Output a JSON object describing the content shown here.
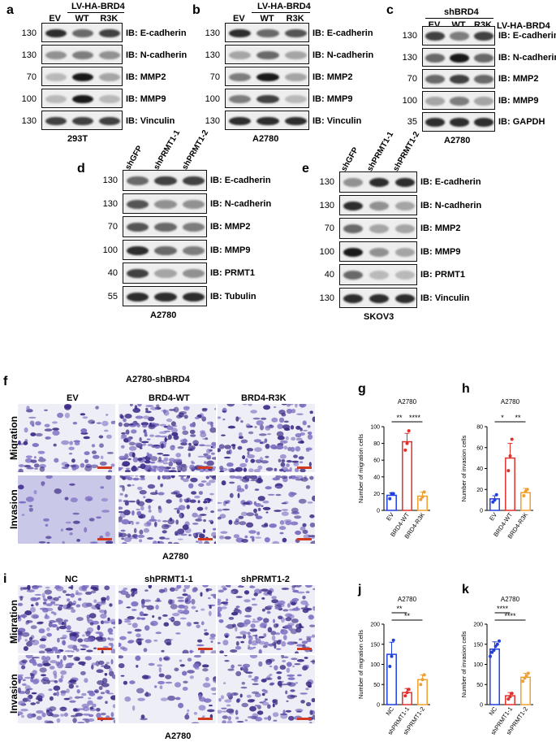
{
  "panels": {
    "a": {
      "letter": "a",
      "construct": "LV-HA-BRD4",
      "lanes": [
        "EV",
        "WT",
        "R3K"
      ],
      "cell_line": "293T",
      "rows": [
        {
          "mw": "130",
          "label": "IB: E-cadherin",
          "bands": [
            0.9,
            0.6,
            0.8
          ]
        },
        {
          "mw": "130",
          "label": "IB: N-cadherin",
          "bands": [
            0.4,
            0.5,
            0.4
          ]
        },
        {
          "mw": "70",
          "label": "IB: MMP2",
          "bands": [
            0.2,
            1.0,
            0.3
          ]
        },
        {
          "mw": "100",
          "label": "IB: MMP9",
          "bands": [
            0.2,
            1.0,
            0.2
          ]
        },
        {
          "mw": "130",
          "label": "IB: Vinculin",
          "bands": [
            0.8,
            0.8,
            0.8
          ]
        }
      ]
    },
    "b": {
      "letter": "b",
      "construct": "LV-HA-BRD4",
      "lanes": [
        "EV",
        "WT",
        "R3K"
      ],
      "cell_line": "A2780",
      "rows": [
        {
          "mw": "130",
          "label": "IB: E-cadherin",
          "bands": [
            0.9,
            0.6,
            0.7
          ]
        },
        {
          "mw": "130",
          "label": "IB: N-cadherin",
          "bands": [
            0.3,
            0.6,
            0.3
          ]
        },
        {
          "mw": "70",
          "label": "IB: MMP2",
          "bands": [
            0.5,
            1.0,
            0.3
          ]
        },
        {
          "mw": "100",
          "label": "IB: MMP9",
          "bands": [
            0.5,
            0.8,
            0.2
          ]
        },
        {
          "mw": "130",
          "label": "IB: Vinculin",
          "bands": [
            0.9,
            0.9,
            0.9
          ]
        }
      ]
    },
    "c": {
      "letter": "c",
      "construct": "shBRD4",
      "construct2": "LV-HA-BRD4",
      "lanes": [
        "EV",
        "WT",
        "R3K"
      ],
      "cell_line": "A2780",
      "rows": [
        {
          "mw": "130",
          "label": "IB: E-cadherin",
          "bands": [
            0.8,
            0.5,
            0.8
          ]
        },
        {
          "mw": "130",
          "label": "IB: N-cadherin",
          "bands": [
            0.6,
            1.0,
            0.6
          ]
        },
        {
          "mw": "70",
          "label": "IB: MMP2",
          "bands": [
            0.6,
            0.8,
            0.6
          ]
        },
        {
          "mw": "100",
          "label": "IB: MMP9",
          "bands": [
            0.3,
            0.5,
            0.3
          ]
        },
        {
          "mw": "35",
          "label": "IB: GAPDH",
          "bands": [
            0.9,
            0.9,
            0.9
          ]
        }
      ]
    },
    "d": {
      "letter": "d",
      "lanes": [
        "shGFP",
        "shPRMT1-1",
        "shPRMT1-2"
      ],
      "cell_line": "A2780",
      "rows": [
        {
          "mw": "130",
          "label": "IB: E-cadherin",
          "bands": [
            0.6,
            0.8,
            0.8
          ]
        },
        {
          "mw": "130",
          "label": "IB: N-cadherin",
          "bands": [
            0.7,
            0.4,
            0.4
          ]
        },
        {
          "mw": "70",
          "label": "IB: MMP2",
          "bands": [
            0.7,
            0.6,
            0.5
          ]
        },
        {
          "mw": "100",
          "label": "IB: MMP9",
          "bands": [
            0.9,
            0.6,
            0.5
          ]
        },
        {
          "mw": "40",
          "label": "IB: PRMT1",
          "bands": [
            0.8,
            0.3,
            0.4
          ]
        },
        {
          "mw": "55",
          "label": "IB: Tubulin",
          "bands": [
            0.9,
            0.9,
            0.9
          ]
        }
      ]
    },
    "e": {
      "letter": "e",
      "lanes": [
        "shGFP",
        "shPRMT1-1",
        "shPRMT1-2"
      ],
      "cell_line": "SKOV3",
      "rows": [
        {
          "mw": "130",
          "label": "IB: E-cadherin",
          "bands": [
            0.4,
            0.9,
            0.9
          ]
        },
        {
          "mw": "130",
          "label": "IB: N-cadherin",
          "bands": [
            0.9,
            0.4,
            0.3
          ]
        },
        {
          "mw": "70",
          "label": "IB: MMP2",
          "bands": [
            0.6,
            0.3,
            0.3
          ]
        },
        {
          "mw": "100",
          "label": "IB: MMP9",
          "bands": [
            1.0,
            0.4,
            0.3
          ]
        },
        {
          "mw": "40",
          "label": "IB: PRMT1",
          "bands": [
            0.6,
            0.2,
            0.2
          ]
        },
        {
          "mw": "130",
          "label": "IB: Vinculin",
          "bands": [
            0.9,
            0.9,
            0.9
          ]
        }
      ]
    },
    "f": {
      "letter": "f",
      "title": "A2780-shBRD4",
      "columns": [
        "EV",
        "BRD4-WT",
        "BRD4-R3K"
      ],
      "rows": [
        "Migration",
        "Invasion"
      ],
      "cell_line": "A2780"
    },
    "i": {
      "letter": "i",
      "columns": [
        "NC",
        "shPRMT1-1",
        "shPRMT1-2"
      ],
      "rows": [
        "Migration",
        "Invasion"
      ],
      "cell_line": "A2780"
    }
  },
  "charts_meta": {
    "g": {
      "letter": "g",
      "sig": [
        "**",
        "****"
      ]
    },
    "h": {
      "letter": "h",
      "sig": [
        "*",
        "**"
      ]
    },
    "j": {
      "letter": "j",
      "sig": [
        "**",
        "**"
      ]
    },
    "k": {
      "letter": "k",
      "sig": [
        "****",
        "****"
      ]
    }
  },
  "colors": {
    "blue": "#1f3fe0",
    "red": "#e0302c",
    "orange": "#f0a030",
    "stain": "#5a3fa0",
    "scalebar": "#d23a1f"
  },
  "chart_data": [
    {
      "id": "g",
      "type": "bar",
      "title": "A2780",
      "ylabel": "Number of migration cells",
      "categories": [
        "EV",
        "BRD4-WT",
        "BRD4-R3K"
      ],
      "values": [
        18,
        82,
        17
      ],
      "errors": [
        3,
        10,
        5
      ],
      "points": [
        [
          14,
          20,
          20
        ],
        [
          72,
          80,
          95
        ],
        [
          13,
          16,
          22
        ]
      ],
      "ylim": [
        0,
        100
      ],
      "yticks": [
        0,
        20,
        40,
        60,
        80,
        100
      ],
      "comparisons": [
        {
          "from": 0,
          "to": 1,
          "label": "**"
        },
        {
          "from": 1,
          "to": 2,
          "label": "****"
        }
      ]
    },
    {
      "id": "h",
      "type": "bar",
      "title": "A2780",
      "ylabel": "Number of invasion cells",
      "categories": [
        "EV",
        "BRD4-WT",
        "BRD4-R3K"
      ],
      "values": [
        11,
        50,
        17
      ],
      "errors": [
        3,
        14,
        4
      ],
      "points": [
        [
          8,
          10,
          15
        ],
        [
          38,
          52,
          68
        ],
        [
          14,
          18,
          20
        ]
      ],
      "ylim": [
        0,
        80
      ],
      "yticks": [
        0,
        20,
        40,
        60,
        80
      ],
      "comparisons": [
        {
          "from": 0,
          "to": 1,
          "label": "*"
        },
        {
          "from": 1,
          "to": 2,
          "label": "**"
        }
      ]
    },
    {
      "id": "j",
      "type": "bar",
      "title": "A2780",
      "ylabel": "Number of migration cells",
      "categories": [
        "NC",
        "shPRMT1-1",
        "shPRMT1-2"
      ],
      "values": [
        125,
        30,
        62
      ],
      "errors": [
        30,
        10,
        12
      ],
      "points": [
        [
          95,
          120,
          160
        ],
        [
          22,
          30,
          38
        ],
        [
          50,
          62,
          74
        ]
      ],
      "ylim": [
        0,
        200
      ],
      "yticks": [
        0,
        50,
        100,
        150,
        200
      ],
      "comparisons": [
        {
          "from": 0,
          "to": 1,
          "label": "**"
        },
        {
          "from": 0,
          "to": 2,
          "label": "**"
        }
      ]
    },
    {
      "id": "k",
      "type": "bar",
      "title": "A2780",
      "ylabel": "Number of invasion cells",
      "categories": [
        "NC",
        "shPRMT1-1",
        "shPRMT1-2"
      ],
      "values": [
        138,
        22,
        68
      ],
      "errors": [
        18,
        8,
        10
      ],
      "points": [
        [
          120,
          130,
          135,
          145,
          150,
          158
        ],
        [
          14,
          20,
          28
        ],
        [
          58,
          66,
          72,
          78
        ]
      ],
      "ylim": [
        0,
        200
      ],
      "yticks": [
        0,
        50,
        100,
        150,
        200
      ],
      "comparisons": [
        {
          "from": 0,
          "to": 1,
          "label": "****"
        },
        {
          "from": 0,
          "to": 2,
          "label": "****"
        }
      ]
    }
  ]
}
